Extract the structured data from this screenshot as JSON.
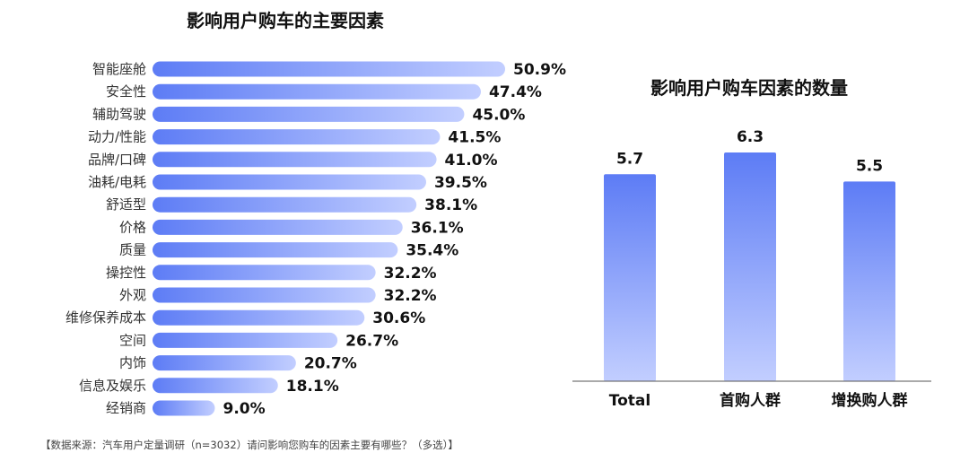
{
  "chart_data": [
    {
      "type": "bar",
      "orientation": "horizontal",
      "title": "影响用户购车的主要因素",
      "categories": [
        "智能座舱",
        "安全性",
        "辅助驾驶",
        "动力/性能",
        "品牌/口碑",
        "油耗/电耗",
        "舒适型",
        "价格",
        "质量",
        "操控性",
        "外观",
        "维修保养成本",
        "空间",
        "内饰",
        "信息及娱乐",
        "经销商"
      ],
      "values": [
        50.9,
        47.4,
        45.0,
        41.5,
        41.0,
        39.5,
        38.1,
        36.1,
        35.4,
        32.2,
        32.2,
        30.6,
        26.7,
        20.7,
        18.1,
        9.0
      ],
      "value_labels": [
        "50.9%",
        "47.4%",
        "45.0%",
        "41.5%",
        "41.0%",
        "39.5%",
        "38.1%",
        "36.1%",
        "35.4%",
        "32.2%",
        "32.2%",
        "30.6%",
        "26.7%",
        "20.7%",
        "18.1%",
        "9.0%"
      ],
      "xlim": [
        0,
        50.9
      ],
      "grid": false,
      "colors": [
        "#c2ceff",
        "#5d7cf5"
      ]
    },
    {
      "type": "bar",
      "title": "影响用户购车因素的数量",
      "categories": [
        "Total",
        "首购人群",
        "增换购人群"
      ],
      "values": [
        5.7,
        6.3,
        5.5
      ],
      "value_labels": [
        "5.7",
        "6.3",
        "5.5"
      ],
      "ylim": [
        0,
        6.3
      ],
      "grid": false,
      "colors": [
        "#5d7cf5",
        "#c2ceff"
      ]
    }
  ],
  "source_note": "【数据来源：汽车用户定量调研（n=3032）请问影响您购车的因素主要有哪些？（多选）】"
}
